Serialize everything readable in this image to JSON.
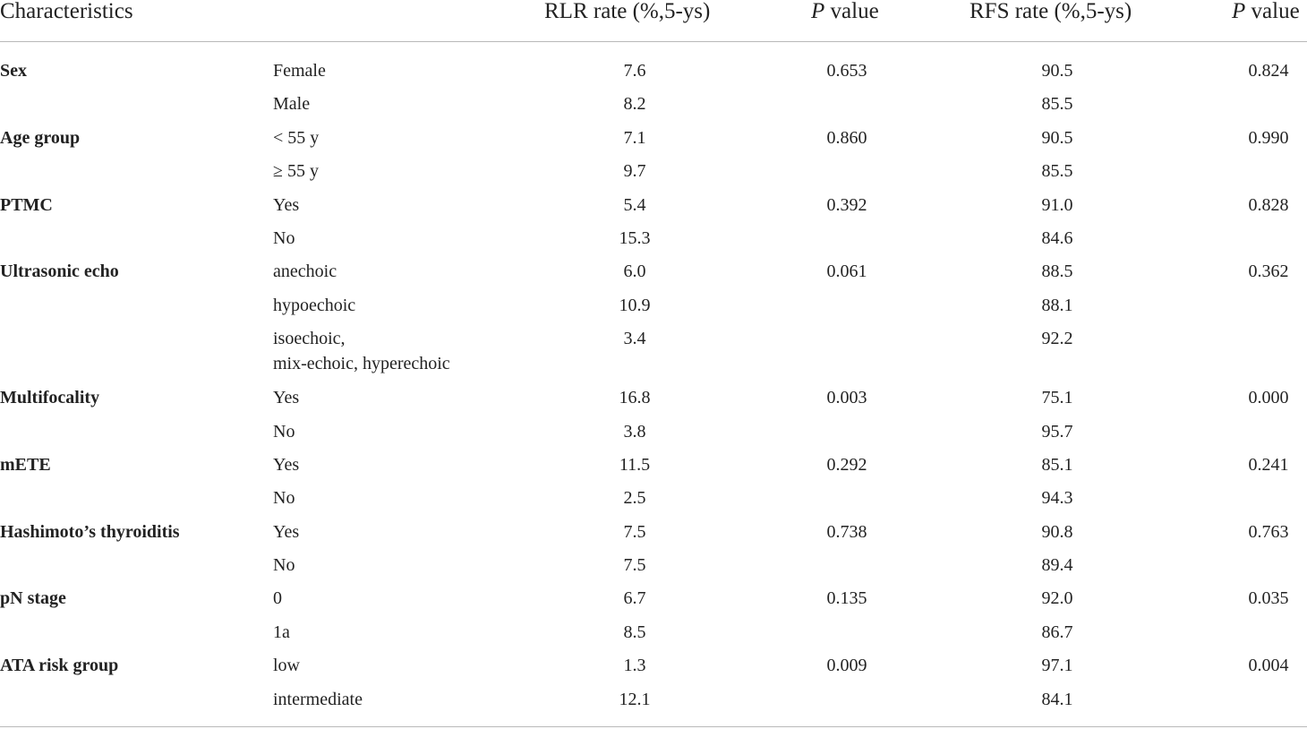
{
  "table": {
    "headers": {
      "characteristics": "Characteristics",
      "rlr": "RLR rate (%,5-ys)",
      "p1_italic": "P",
      "p1_rest": " value",
      "rfs": "RFS rate (%,5-ys)",
      "p2_italic": "P",
      "p2_rest": " value"
    },
    "rows": [
      {
        "characteristic": "Sex",
        "sub": "Female",
        "rlr": "7.6",
        "p1": "0.653",
        "rfs": "90.5",
        "p2": "0.824"
      },
      {
        "characteristic": "",
        "sub": "Male",
        "rlr": "8.2",
        "p1": "",
        "rfs": "85.5",
        "p2": ""
      },
      {
        "characteristic": "Age group",
        "sub": "< 55 y",
        "rlr": "7.1",
        "p1": "0.860",
        "rfs": "90.5",
        "p2": "0.990"
      },
      {
        "characteristic": "",
        "sub": "≥ 55 y",
        "rlr": "9.7",
        "p1": "",
        "rfs": "85.5",
        "p2": ""
      },
      {
        "characteristic": "PTMC",
        "sub": "Yes",
        "rlr": "5.4",
        "p1": "0.392",
        "rfs": "91.0",
        "p2": "0.828"
      },
      {
        "characteristic": "",
        "sub": "No",
        "rlr": "15.3",
        "p1": "",
        "rfs": "84.6",
        "p2": ""
      },
      {
        "characteristic": "Ultrasonic echo",
        "sub": "anechoic",
        "rlr": "6.0",
        "p1": "0.061",
        "rfs": "88.5",
        "p2": "0.362"
      },
      {
        "characteristic": "",
        "sub": "hypoechoic",
        "rlr": "10.9",
        "p1": "",
        "rfs": "88.1",
        "p2": ""
      },
      {
        "characteristic": "",
        "sub": "isoechoic,\nmix-echoic, hyperechoic",
        "rlr": "3.4",
        "p1": "",
        "rfs": "92.2",
        "p2": ""
      },
      {
        "characteristic": "Multifocality",
        "sub": "Yes",
        "rlr": "16.8",
        "p1": "0.003",
        "rfs": "75.1",
        "p2": "0.000"
      },
      {
        "characteristic": "",
        "sub": "No",
        "rlr": "3.8",
        "p1": "",
        "rfs": "95.7",
        "p2": ""
      },
      {
        "characteristic": "mETE",
        "sub": "Yes",
        "rlr": "11.5",
        "p1": "0.292",
        "rfs": "85.1",
        "p2": "0.241"
      },
      {
        "characteristic": "",
        "sub": "No",
        "rlr": "2.5",
        "p1": "",
        "rfs": "94.3",
        "p2": ""
      },
      {
        "characteristic": "Hashimoto’s thyroiditis",
        "sub": "Yes",
        "rlr": "7.5",
        "p1": "0.738",
        "rfs": "90.8",
        "p2": "0.763"
      },
      {
        "characteristic": "",
        "sub": "No",
        "rlr": "7.5",
        "p1": "",
        "rfs": "89.4",
        "p2": ""
      },
      {
        "characteristic": "pN stage",
        "sub": "0",
        "rlr": "6.7",
        "p1": "0.135",
        "rfs": "92.0",
        "p2": "0.035"
      },
      {
        "characteristic": "",
        "sub": "1a",
        "rlr": "8.5",
        "p1": "",
        "rfs": "86.7",
        "p2": ""
      },
      {
        "characteristic": "ATA risk group",
        "sub": "low",
        "rlr": "1.3",
        "p1": "0.009",
        "rfs": "97.1",
        "p2": "0.004"
      },
      {
        "characteristic": "",
        "sub": "intermediate",
        "rlr": "12.1",
        "p1": "",
        "rfs": "84.1",
        "p2": ""
      }
    ]
  }
}
